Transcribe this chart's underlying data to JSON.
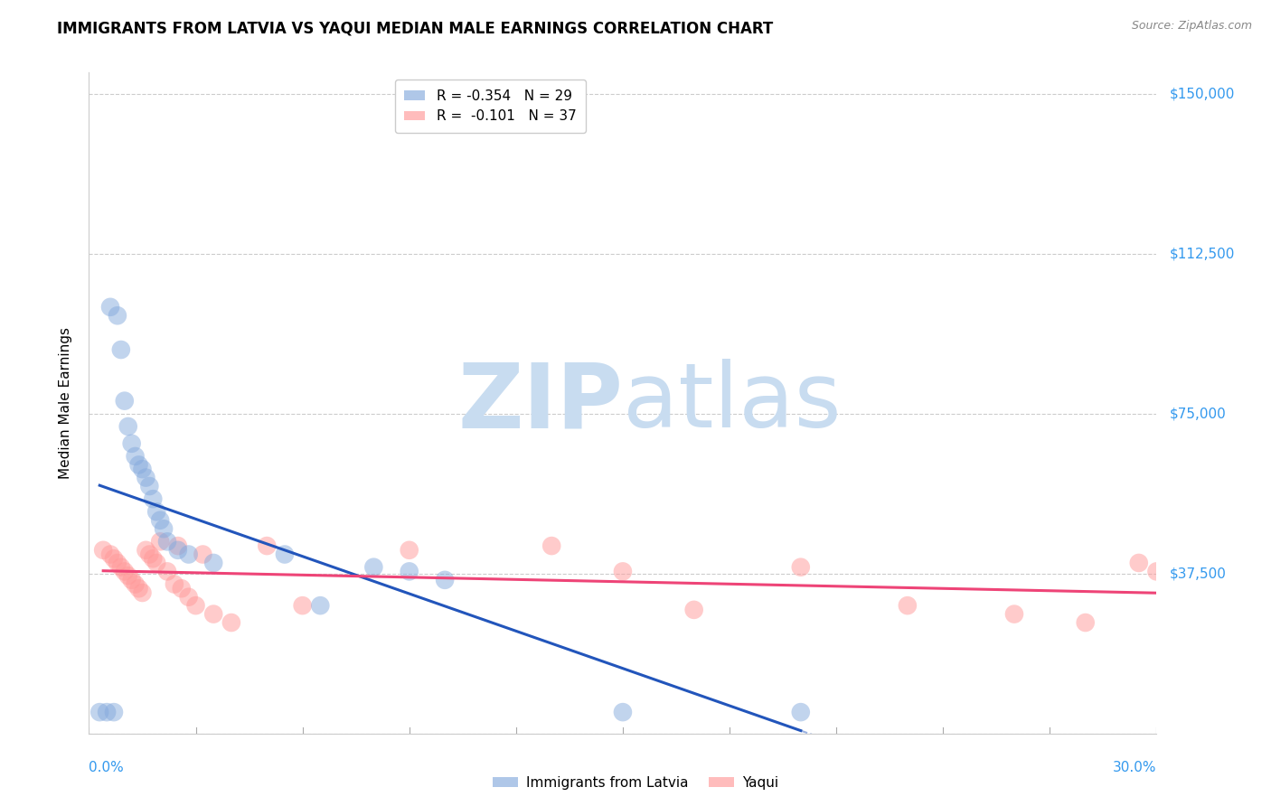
{
  "title": "IMMIGRANTS FROM LATVIA VS YAQUI MEDIAN MALE EARNINGS CORRELATION CHART",
  "source": "Source: ZipAtlas.com",
  "ylabel": "Median Male Earnings",
  "yticks": [
    0,
    37500,
    75000,
    112500,
    150000
  ],
  "ytick_labels": [
    "",
    "$37,500",
    "$75,000",
    "$112,500",
    "$150,000"
  ],
  "xlim": [
    0.0,
    0.3
  ],
  "ylim": [
    0,
    155000
  ],
  "legend_r1": "R = -0.354   N = 29",
  "legend_r2": "R =  -0.101   N = 37",
  "blue_color": "#85AADD",
  "pink_color": "#FF9999",
  "blue_line_color": "#2255BB",
  "pink_line_color": "#EE4477",
  "latvia_x": [
    0.003,
    0.005,
    0.006,
    0.007,
    0.008,
    0.009,
    0.01,
    0.011,
    0.012,
    0.013,
    0.014,
    0.015,
    0.016,
    0.017,
    0.018,
    0.019,
    0.02,
    0.021,
    0.022,
    0.025,
    0.028,
    0.035,
    0.055,
    0.065,
    0.08,
    0.09,
    0.1,
    0.15,
    0.2
  ],
  "latvia_y": [
    5000,
    5000,
    100000,
    5000,
    98000,
    90000,
    78000,
    72000,
    68000,
    65000,
    63000,
    62000,
    60000,
    58000,
    55000,
    52000,
    50000,
    48000,
    45000,
    43000,
    42000,
    40000,
    42000,
    30000,
    39000,
    38000,
    36000,
    5000,
    5000
  ],
  "yaqui_x": [
    0.004,
    0.006,
    0.007,
    0.008,
    0.009,
    0.01,
    0.011,
    0.012,
    0.013,
    0.014,
    0.015,
    0.016,
    0.017,
    0.018,
    0.019,
    0.02,
    0.022,
    0.024,
    0.025,
    0.026,
    0.028,
    0.03,
    0.032,
    0.035,
    0.04,
    0.05,
    0.06,
    0.09,
    0.13,
    0.15,
    0.17,
    0.2,
    0.23,
    0.26,
    0.28,
    0.295,
    0.3
  ],
  "yaqui_y": [
    43000,
    42000,
    41000,
    40000,
    39000,
    38000,
    37000,
    36000,
    35000,
    34000,
    33000,
    43000,
    42000,
    41000,
    40000,
    45000,
    38000,
    35000,
    44000,
    34000,
    32000,
    30000,
    42000,
    28000,
    26000,
    44000,
    30000,
    43000,
    44000,
    38000,
    29000,
    39000,
    30000,
    28000,
    26000,
    40000,
    38000
  ]
}
